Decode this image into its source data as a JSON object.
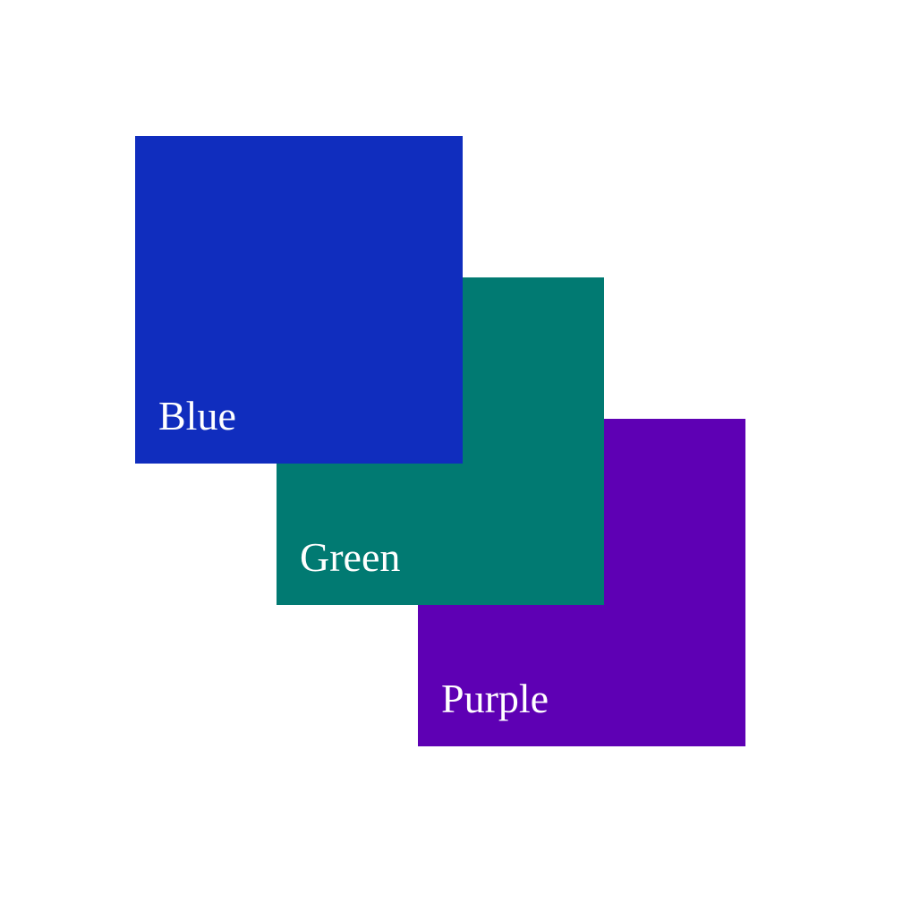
{
  "squares": [
    {
      "id": "blue",
      "label": "Blue",
      "color": "#102dbe"
    },
    {
      "id": "green",
      "label": "Green",
      "color": "#017a72"
    },
    {
      "id": "purple",
      "label": "Purple",
      "color": "#5e00b4"
    }
  ]
}
